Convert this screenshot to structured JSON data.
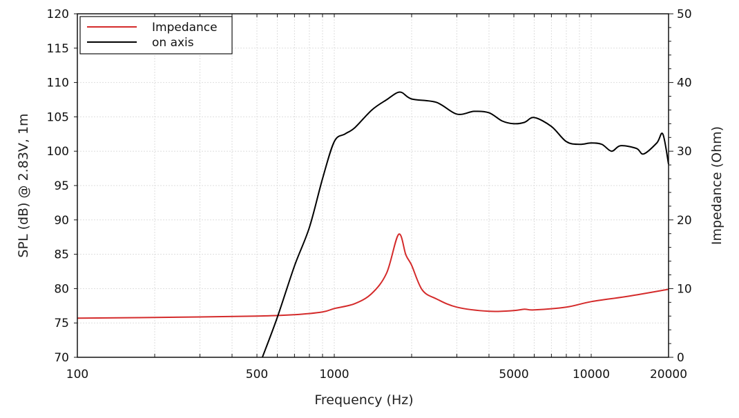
{
  "chart_data": {
    "type": "line",
    "xlabel": "Frequency (Hz)",
    "ylabel": "SPL (dB) @ 2.83V, 1m",
    "y2label": "Impedance (Ohm)",
    "xscale": "log",
    "xlim": [
      100,
      20000
    ],
    "ylim": [
      70,
      120
    ],
    "y2lim": [
      0,
      50
    ],
    "xticks": [
      "100",
      "500",
      "1000",
      "5000",
      "10000",
      "20000"
    ],
    "yticks": [
      "70",
      "75",
      "80",
      "85",
      "90",
      "95",
      "100",
      "105",
      "110",
      "115",
      "120"
    ],
    "y2ticks": [
      "0",
      "10",
      "20",
      "30",
      "40",
      "50"
    ],
    "grid": true,
    "legend_position": "top-left",
    "series": [
      {
        "name": "Impedance",
        "axis": "right",
        "color": "#d42a2a",
        "x": [
          100,
          200,
          500,
          700,
          900,
          1000,
          1200,
          1400,
          1600,
          1780,
          1900,
          2000,
          2200,
          2500,
          3000,
          4000,
          5000,
          5500,
          6000,
          8000,
          10000,
          14000,
          20000
        ],
        "y": [
          5.7,
          5.8,
          6.0,
          6.2,
          6.6,
          7.1,
          7.8,
          9.3,
          12.3,
          17.9,
          14.9,
          13.4,
          9.8,
          8.5,
          7.3,
          6.7,
          6.8,
          7.0,
          6.9,
          7.3,
          8.1,
          8.9,
          9.9
        ]
      },
      {
        "name": "on axis",
        "axis": "left",
        "color": "#000000",
        "x": [
          525,
          600,
          700,
          800,
          900,
          1000,
          1100,
          1200,
          1400,
          1600,
          1800,
          2000,
          2500,
          3000,
          3500,
          4000,
          4500,
          5000,
          5500,
          6000,
          7000,
          8000,
          9000,
          10000,
          11000,
          12000,
          13000,
          15000,
          16000,
          18000,
          19000,
          20000
        ],
        "y": [
          70,
          75.8,
          83.3,
          88.9,
          96,
          101.4,
          102.5,
          103.4,
          106,
          107.5,
          108.6,
          107.6,
          107.1,
          105.4,
          105.8,
          105.6,
          104.4,
          104.0,
          104.2,
          104.9,
          103.6,
          101.4,
          101.0,
          101.2,
          101.0,
          100.0,
          100.8,
          100.4,
          99.6,
          101.2,
          102.5,
          98.1
        ]
      }
    ]
  }
}
